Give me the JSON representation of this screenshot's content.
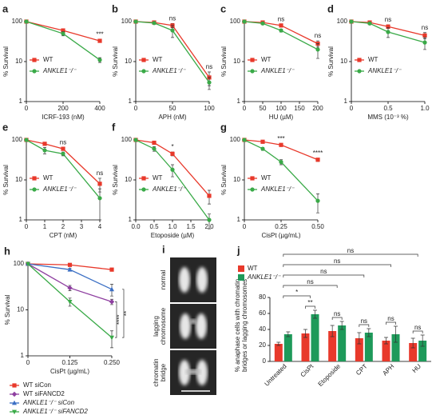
{
  "chart_data": [
    {
      "type": "line",
      "panel": "a",
      "xlabel": "ICRF-193 (nM)",
      "ylabel": "% Survival",
      "x": [
        0,
        200,
        400
      ],
      "xlim": [
        0,
        400
      ],
      "xticks": [
        0,
        200,
        400
      ],
      "ylim": [
        1,
        100
      ],
      "yticks": [
        1,
        10,
        100
      ],
      "log_y": true,
      "legend": "lower left",
      "significance": [
        null,
        null,
        "***"
      ],
      "series": [
        {
          "name": "WT",
          "color": "#e8392b",
          "marker": "square",
          "values": [
            100,
            60,
            33
          ],
          "errors": [
            0,
            5,
            3
          ]
        },
        {
          "name": "ANKLE1⁻/⁻",
          "color": "#3aaa48",
          "marker": "circle",
          "values": [
            100,
            50,
            11
          ],
          "errors": [
            0,
            6,
            1.5
          ]
        }
      ]
    },
    {
      "type": "line",
      "panel": "b",
      "xlabel": "APH (nM)",
      "ylabel": "% Survival",
      "x": [
        0,
        25,
        50,
        100
      ],
      "xlim": [
        0,
        100
      ],
      "xticks": [
        0,
        50,
        100
      ],
      "ylim": [
        1,
        100
      ],
      "yticks": [
        1,
        10,
        100
      ],
      "log_y": true,
      "legend": "lower left",
      "significance": [
        null,
        null,
        "ns",
        "ns"
      ],
      "series": [
        {
          "name": "WT",
          "color": "#e8392b",
          "marker": "square",
          "values": [
            100,
            95,
            80,
            4
          ],
          "errors": [
            0,
            3,
            10,
            1.5
          ]
        },
        {
          "name": "ANKLE1⁻/⁻",
          "color": "#3aaa48",
          "marker": "circle",
          "values": [
            100,
            92,
            60,
            3
          ],
          "errors": [
            0,
            4,
            20,
            1
          ]
        }
      ]
    },
    {
      "type": "line",
      "panel": "c",
      "xlabel": "HU (µM)",
      "ylabel": "% Survival",
      "x": [
        0,
        50,
        100,
        200
      ],
      "xlim": [
        0,
        200
      ],
      "xticks": [
        0,
        50,
        100,
        150,
        200
      ],
      "ylim": [
        1,
        100
      ],
      "yticks": [
        1,
        10,
        100
      ],
      "log_y": true,
      "legend": "lower left",
      "significance": [
        null,
        null,
        "ns",
        "ns"
      ],
      "series": [
        {
          "name": "WT",
          "color": "#e8392b",
          "marker": "square",
          "values": [
            100,
            95,
            80,
            28
          ],
          "errors": [
            0,
            3,
            5,
            5
          ]
        },
        {
          "name": "ANKLE1⁻/⁻",
          "color": "#3aaa48",
          "marker": "circle",
          "values": [
            100,
            90,
            60,
            20
          ],
          "errors": [
            0,
            4,
            5,
            8
          ]
        }
      ]
    },
    {
      "type": "line",
      "panel": "d",
      "xlabel": "MMS (10⁻³ %)",
      "ylabel": "% Survival",
      "x": [
        0,
        0.25,
        0.5,
        1
      ],
      "xlim": [
        0,
        1
      ],
      "xticks": [
        0,
        0.5,
        {
          "value": 1,
          "label": "1.0"
        }
      ],
      "ylim": [
        1,
        100
      ],
      "yticks": [
        1,
        10,
        100
      ],
      "log_y": true,
      "legend": "lower left",
      "significance": [
        null,
        null,
        "ns",
        "ns"
      ],
      "series": [
        {
          "name": "WT",
          "color": "#e8392b",
          "marker": "square",
          "values": [
            100,
            95,
            75,
            45
          ],
          "errors": [
            0,
            3,
            8,
            8
          ]
        },
        {
          "name": "ANKLE1⁻/⁻",
          "color": "#3aaa48",
          "marker": "circle",
          "values": [
            100,
            90,
            55,
            30
          ],
          "errors": [
            0,
            4,
            15,
            10
          ]
        }
      ]
    },
    {
      "type": "line",
      "panel": "e",
      "xlabel": "CPT (nM)",
      "ylabel": "% Survival",
      "x": [
        0,
        1,
        2,
        4
      ],
      "xlim": [
        0,
        4
      ],
      "xticks": [
        0,
        1,
        2,
        3,
        4
      ],
      "ylim": [
        1,
        100
      ],
      "yticks": [
        1,
        10,
        100
      ],
      "log_y": true,
      "legend": "lower left",
      "significance": [
        null,
        null,
        "ns",
        "ns"
      ],
      "series": [
        {
          "name": "WT",
          "color": "#e8392b",
          "marker": "square",
          "values": [
            100,
            80,
            60,
            8
          ],
          "errors": [
            0,
            5,
            5,
            3
          ]
        },
        {
          "name": "ANKLE1⁻/⁻",
          "color": "#3aaa48",
          "marker": "circle",
          "values": [
            100,
            55,
            45,
            3.5
          ],
          "errors": [
            0,
            10,
            5,
            2.5
          ]
        }
      ]
    },
    {
      "type": "line",
      "panel": "f",
      "xlabel": "Etoposide (µM)",
      "ylabel": "% Survival",
      "x": [
        0,
        0.5,
        1,
        2
      ],
      "xlim": [
        0,
        2
      ],
      "xticks": [
        {
          "value": 0,
          "label": "0.0"
        },
        0.5,
        {
          "value": 1,
          "label": "1.0"
        },
        1.5,
        {
          "value": 2,
          "label": "2.0"
        }
      ],
      "ylim": [
        1,
        100
      ],
      "yticks": [
        1,
        10,
        100
      ],
      "log_y": true,
      "legend": "lower left",
      "significance": [
        null,
        null,
        "*",
        null
      ],
      "series": [
        {
          "name": "WT",
          "color": "#e8392b",
          "marker": "square",
          "values": [
            100,
            85,
            45,
            4
          ],
          "errors": [
            0,
            3,
            5,
            1.5
          ]
        },
        {
          "name": "ANKLE1⁻/⁻",
          "color": "#3aaa48",
          "marker": "circle",
          "values": [
            100,
            60,
            18,
            1
          ],
          "errors": [
            0,
            8,
            6,
            0.4
          ]
        }
      ]
    },
    {
      "type": "line",
      "panel": "g",
      "xlabel": "CisPt (µg/mL)",
      "ylabel": "% Survival",
      "x": [
        0,
        0.125,
        0.25,
        0.5
      ],
      "xlim": [
        0,
        0.5
      ],
      "xticks": [
        0,
        0.25,
        {
          "value": 0.5,
          "label": "0.50"
        }
      ],
      "ylim": [
        1,
        100
      ],
      "yticks": [
        1,
        10,
        100
      ],
      "log_y": true,
      "legend": "lower left",
      "significance": [
        null,
        null,
        "***",
        "****"
      ],
      "series": [
        {
          "name": "WT",
          "color": "#e8392b",
          "marker": "square",
          "values": [
            100,
            90,
            75,
            32
          ],
          "errors": [
            0,
            3,
            5,
            3
          ]
        },
        {
          "name": "ANKLE1⁻/⁻",
          "color": "#3aaa48",
          "marker": "circle",
          "values": [
            100,
            60,
            28,
            3
          ],
          "errors": [
            0,
            5,
            4,
            1.5
          ]
        }
      ]
    },
    {
      "type": "line",
      "panel": "h",
      "xlabel": "CisPt (µg/mL)",
      "ylabel": "% Survival",
      "x": [
        0,
        0.125,
        0.25
      ],
      "xlim": [
        0,
        0.25
      ],
      "xticks": [
        0,
        0.125,
        {
          "value": 0.25,
          "label": "0.250"
        }
      ],
      "ylim": [
        1,
        100
      ],
      "yticks": [
        1,
        10,
        100
      ],
      "log_y": true,
      "legend": "below",
      "series": [
        {
          "name": "WT siCon",
          "color": "#e8392b",
          "marker": "square",
          "values": [
            100,
            95,
            75
          ],
          "errors": [
            0,
            3,
            4
          ]
        },
        {
          "name": "WT siFANCD2",
          "color": "#8e3fa0",
          "marker": "diamond",
          "values": [
            100,
            30,
            15
          ],
          "errors": [
            0,
            4,
            2
          ]
        },
        {
          "name": "ANKLE1⁻/⁻ siCon",
          "color": "#3b6fc4",
          "marker": "triangle",
          "values": [
            100,
            75,
            28
          ],
          "errors": [
            0,
            5,
            8
          ]
        },
        {
          "name": "ANKLE1⁻/⁻ siFANCD2",
          "color": "#3aaa48",
          "marker": "triangle-down",
          "values": [
            100,
            15,
            2.5
          ],
          "errors": [
            0,
            3,
            1
          ]
        }
      ],
      "brackets": [
        {
          "label": "****",
          "series": [
            "WT siFANCD2",
            "ANKLE1⁻/⁻ siFANCD2"
          ]
        },
        {
          "label": "**",
          "series": [
            "ANKLE1⁻/⁻ siCon",
            "ANKLE1⁻/⁻ siFANCD2"
          ]
        }
      ]
    },
    {
      "type": "image",
      "panel": "i",
      "labels": [
        [
          "normal"
        ],
        [
          "lagging",
          "chromosome"
        ],
        [
          "chromatin",
          "bridge"
        ]
      ]
    },
    {
      "type": "bar",
      "panel": "j",
      "ylabel": [
        "% anaphase cells with chromatin",
        "bridges or lagging chromosomes"
      ],
      "categories": [
        "Untreated",
        "CisPt",
        "Etoposide",
        "CPT",
        "APH",
        "HU"
      ],
      "ylim": [
        0,
        80
      ],
      "yticks": [
        0,
        20,
        40,
        60,
        80
      ],
      "series": [
        {
          "name": "WT",
          "color": "#e8392b",
          "values": [
            22,
            35,
            38,
            29,
            26,
            23
          ],
          "errors": [
            2,
            5,
            7,
            7,
            4,
            6
          ]
        },
        {
          "name": "ANKLE1⁻/⁻",
          "color": "#1e9a5a",
          "values": [
            34,
            59,
            45,
            36,
            34,
            26
          ],
          "errors": [
            3,
            5,
            5,
            5,
            10,
            7
          ]
        }
      ],
      "comparisons": [
        {
          "label": "ns",
          "groups": [
            "Untreated",
            "HU"
          ]
        },
        {
          "label": "ns",
          "groups": [
            "Untreated",
            "APH"
          ]
        },
        {
          "label": "ns",
          "groups": [
            "Untreated",
            "CPT"
          ]
        },
        {
          "label": "ns",
          "groups": [
            "Untreated",
            "Etoposide"
          ]
        },
        {
          "label": "*",
          "groups": [
            "Untreated",
            "CisPt"
          ]
        },
        {
          "label": "**",
          "groups": [
            "CisPt"
          ]
        },
        {
          "label": "ns",
          "groups": [
            "Etoposide"
          ]
        },
        {
          "label": "ns",
          "groups": [
            "CPT"
          ]
        },
        {
          "label": "ns",
          "groups": [
            "APH"
          ]
        },
        {
          "label": "ns",
          "groups": [
            "HU"
          ]
        }
      ]
    }
  ]
}
